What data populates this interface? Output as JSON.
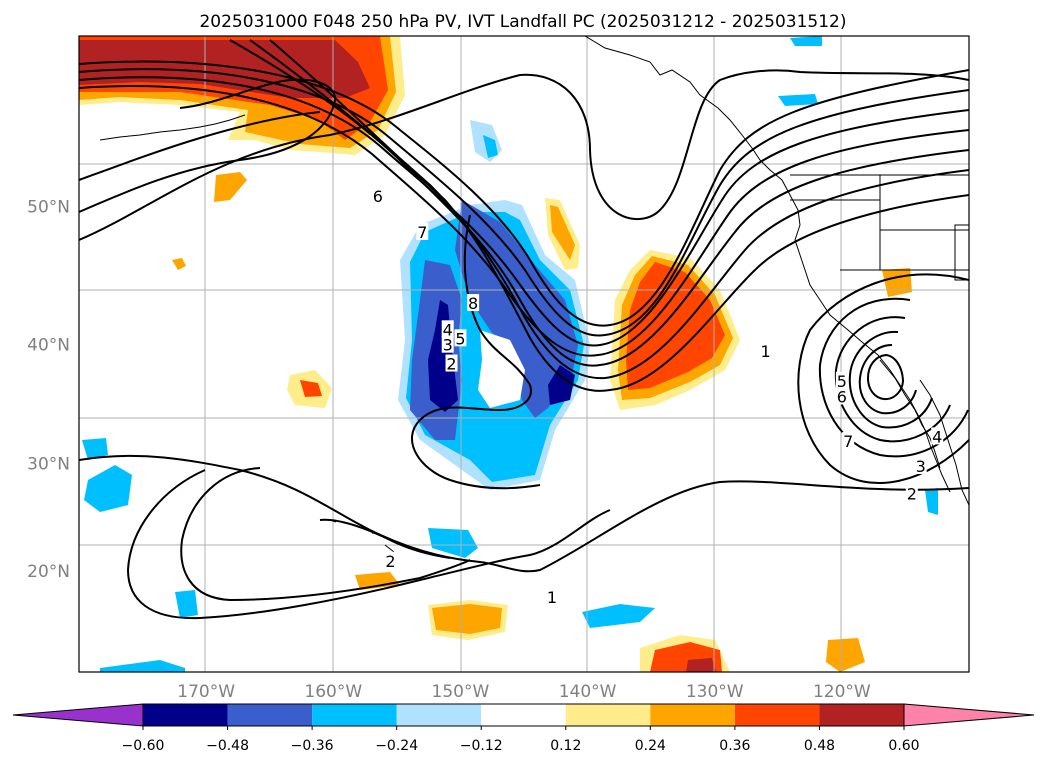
{
  "title": "2025031000 F048 250 hPa PV, IVT Landfall PC (2025031212 - 2025031512)",
  "chart_data": {
    "type": "map",
    "projection": "Mercator",
    "extent": {
      "lon": [
        -180,
        -110
      ],
      "lat": [
        10,
        60
      ]
    },
    "grid": true,
    "lon_ticks": [
      {
        "lon": -170,
        "label": "170°W"
      },
      {
        "lon": -160,
        "label": "160°W"
      },
      {
        "lon": -150,
        "label": "150°W"
      },
      {
        "lon": -140,
        "label": "140°W"
      },
      {
        "lon": -130,
        "label": "130°W"
      },
      {
        "lon": -120,
        "label": "120°W"
      }
    ],
    "lat_ticks": [
      {
        "lat": 20,
        "label": "20°N"
      },
      {
        "lat": 30,
        "label": "30°N"
      },
      {
        "lat": 40,
        "label": "40°N"
      },
      {
        "lat": 50,
        "label": "50°N"
      }
    ],
    "colorbar": {
      "extend": "both",
      "levels": [
        -0.6,
        -0.48,
        -0.36,
        -0.24,
        -0.12,
        0.12,
        0.24,
        0.36,
        0.48,
        0.6
      ],
      "tick_labels": [
        "−0.60",
        "−0.48",
        "−0.36",
        "−0.24",
        "−0.12",
        "0.12",
        "0.24",
        "0.36",
        "0.48",
        "0.60"
      ],
      "colors": [
        "#9932cc",
        "#00008b",
        "#3a5fcd",
        "#00bfff",
        "#b0e2ff",
        "#ffffff",
        "#ffec8b",
        "#ffa500",
        "#ff4500",
        "#b22222",
        "#ff82ab"
      ]
    },
    "pv_contour_labels": [
      {
        "text": "6",
        "lon": -156.5,
        "lat": 50.7
      },
      {
        "text": "7",
        "lon": -153,
        "lat": 48.3
      },
      {
        "text": "8",
        "lon": -149,
        "lat": 43.2
      },
      {
        "text": "4",
        "lon": -151,
        "lat": 41.2
      },
      {
        "text": "5",
        "lon": -150,
        "lat": 40.5
      },
      {
        "text": "3",
        "lon": -151,
        "lat": 40.0
      },
      {
        "text": "2",
        "lon": -150.7,
        "lat": 38.5
      },
      {
        "text": "1",
        "lon": -126,
        "lat": 39.5
      },
      {
        "text": "2",
        "lon": -155.5,
        "lat": 21.0
      },
      {
        "text": "1",
        "lon": -142.8,
        "lat": 17.5
      },
      {
        "text": "5",
        "lon": -120,
        "lat": 37.1
      },
      {
        "text": "6",
        "lon": -120,
        "lat": 35.8
      },
      {
        "text": "7",
        "lon": -119.5,
        "lat": 32.0
      },
      {
        "text": "4",
        "lon": -112.5,
        "lat": 32.4
      },
      {
        "text": "3",
        "lon": -113.8,
        "lat": 29.8
      },
      {
        "text": "2",
        "lon": -114.5,
        "lat": 27.3
      }
    ]
  }
}
